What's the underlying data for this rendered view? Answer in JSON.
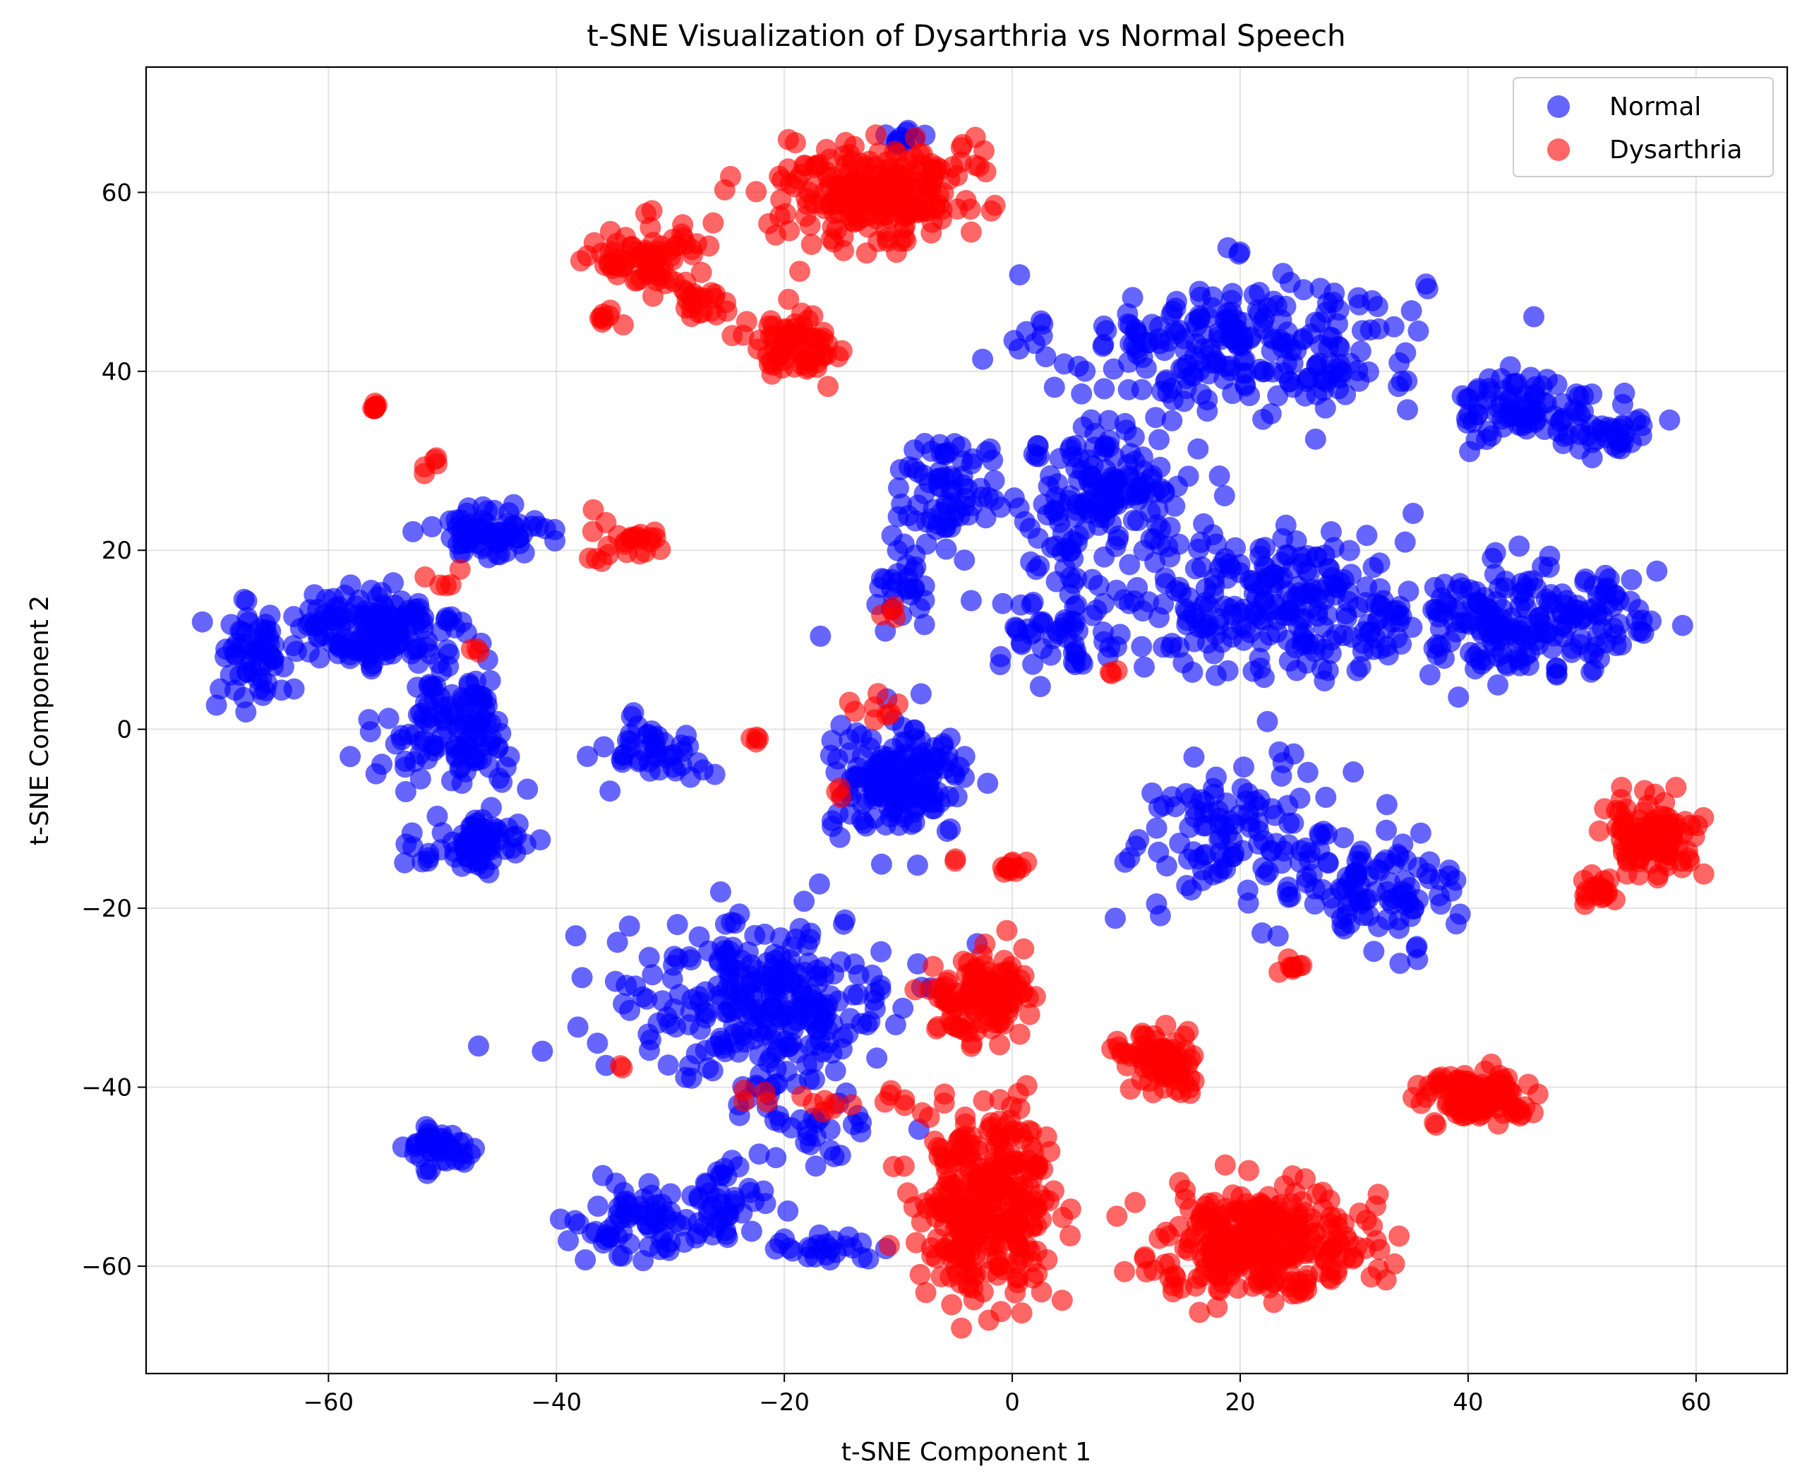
{
  "chart_data": {
    "type": "scatter",
    "title": "t-SNE Visualization of Dysarthria vs Normal Speech",
    "xlabel": "t-SNE Component 1",
    "ylabel": "t-SNE Component 2",
    "xlim": [
      -76,
      68
    ],
    "ylim": [
      -72,
      74
    ],
    "xticks": [
      -60,
      -40,
      -20,
      0,
      20,
      40,
      60
    ],
    "yticks": [
      -60,
      -40,
      -20,
      0,
      20,
      40,
      60
    ],
    "grid": true,
    "legend": {
      "placement": "top-right"
    },
    "series": [
      {
        "name": "Normal",
        "color": "#0000ff",
        "clusters": [
          {
            "cx": 20,
            "cy": 43,
            "sx": 8,
            "sy": 4,
            "n": 240
          },
          {
            "cx": 8,
            "cy": 27,
            "sx": 4,
            "sy": 4,
            "n": 150
          },
          {
            "cx": 24,
            "cy": 14,
            "sx": 8,
            "sy": 4,
            "n": 260
          },
          {
            "cx": 44,
            "cy": 36,
            "sx": 2.5,
            "sy": 2,
            "n": 70
          },
          {
            "cx": 52,
            "cy": 34,
            "sx": 2,
            "sy": 2,
            "n": 45
          },
          {
            "cx": 43,
            "cy": 12,
            "sx": 4,
            "sy": 3,
            "n": 120
          },
          {
            "cx": 51,
            "cy": 12,
            "sx": 3,
            "sy": 3,
            "n": 70
          },
          {
            "cx": 20,
            "cy": -12,
            "sx": 5,
            "sy": 4,
            "n": 120
          },
          {
            "cx": 32,
            "cy": -18,
            "sx": 3.5,
            "sy": 3,
            "n": 90
          },
          {
            "cx": 5,
            "cy": 12,
            "sx": 3,
            "sy": 3,
            "n": 60
          },
          {
            "cx": -10,
            "cy": -6,
            "sx": 3,
            "sy": 3,
            "n": 170
          },
          {
            "cx": -6,
            "cy": 27,
            "sx": 2.5,
            "sy": 3,
            "n": 70
          },
          {
            "cx": -9,
            "cy": 16,
            "sx": 2,
            "sy": 2,
            "n": 30
          },
          {
            "cx": -22,
            "cy": -31,
            "sx": 6,
            "sy": 5,
            "n": 280
          },
          {
            "cx": -56,
            "cy": 11,
            "sx": 4,
            "sy": 2.5,
            "n": 150
          },
          {
            "cx": -67,
            "cy": 8,
            "sx": 1.5,
            "sy": 3,
            "n": 60
          },
          {
            "cx": -49,
            "cy": 0,
            "sx": 3,
            "sy": 3,
            "n": 120
          },
          {
            "cx": -46,
            "cy": 22,
            "sx": 2.5,
            "sy": 1.5,
            "n": 70
          },
          {
            "cx": -47,
            "cy": -13,
            "sx": 2.5,
            "sy": 1.5,
            "n": 70
          },
          {
            "cx": -50,
            "cy": -47,
            "sx": 1.5,
            "sy": 1.2,
            "n": 45
          },
          {
            "cx": -32,
            "cy": -55,
            "sx": 3,
            "sy": 2,
            "n": 70
          },
          {
            "cx": -26,
            "cy": -53,
            "sx": 2,
            "sy": 2,
            "n": 40
          },
          {
            "cx": -17,
            "cy": -58,
            "sx": 2.5,
            "sy": 0.7,
            "n": 25
          },
          {
            "cx": -32,
            "cy": -2,
            "sx": 2.5,
            "sy": 2,
            "n": 45
          },
          {
            "cx": -9,
            "cy": 66,
            "sx": 1,
            "sy": 0.6,
            "n": 12
          },
          {
            "cx": -16,
            "cy": -44,
            "sx": 3,
            "sy": 2,
            "n": 25
          }
        ]
      },
      {
        "name": "Dysarthria",
        "color": "#ff0000",
        "clusters": [
          {
            "cx": -12,
            "cy": 60,
            "sx": 4,
            "sy": 3,
            "n": 250
          },
          {
            "cx": -32,
            "cy": 53,
            "sx": 2.5,
            "sy": 1.8,
            "n": 80
          },
          {
            "cx": -27,
            "cy": 47.5,
            "sx": 1.5,
            "sy": 0.8,
            "n": 20
          },
          {
            "cx": -36,
            "cy": 46,
            "sx": 0.5,
            "sy": 0.6,
            "n": 8
          },
          {
            "cx": -19,
            "cy": 43,
            "sx": 2,
            "sy": 2,
            "n": 70
          },
          {
            "cx": -56,
            "cy": 36,
            "sx": 0.3,
            "sy": 0.2,
            "n": 8
          },
          {
            "cx": -51,
            "cy": 29.5,
            "sx": 0.3,
            "sy": 0.5,
            "n": 5
          },
          {
            "cx": -33,
            "cy": 21,
            "sx": 1.2,
            "sy": 1,
            "n": 20
          },
          {
            "cx": -36.5,
            "cy": 20,
            "sx": 0.4,
            "sy": 2.2,
            "n": 6
          },
          {
            "cx": -50,
            "cy": 16.5,
            "sx": 0.8,
            "sy": 0.6,
            "n": 5
          },
          {
            "cx": -3,
            "cy": -30,
            "sx": 2,
            "sy": 2.5,
            "n": 120
          },
          {
            "cx": -2,
            "cy": -53,
            "sx": 3,
            "sy": 5,
            "n": 320
          },
          {
            "cx": 13,
            "cy": -37,
            "sx": 2,
            "sy": 1.5,
            "n": 80
          },
          {
            "cx": 22,
            "cy": -57,
            "sx": 4.5,
            "sy": 3,
            "n": 300
          },
          {
            "cx": 41,
            "cy": -41,
            "sx": 2.5,
            "sy": 1.2,
            "n": 120
          },
          {
            "cx": 56,
            "cy": -12,
            "sx": 2,
            "sy": 2,
            "n": 120
          },
          {
            "cx": 51.5,
            "cy": -18,
            "sx": 1,
            "sy": 0.8,
            "n": 20
          },
          {
            "cx": 0,
            "cy": -15.5,
            "sx": 1,
            "sy": 0.3,
            "n": 12
          },
          {
            "cx": 25,
            "cy": -26.5,
            "sx": 0.8,
            "sy": 0.6,
            "n": 8
          },
          {
            "cx": -12,
            "cy": 3,
            "sx": 1.5,
            "sy": 1,
            "n": 8
          },
          {
            "cx": -22.5,
            "cy": -1,
            "sx": 0.3,
            "sy": 0.3,
            "n": 4
          },
          {
            "cx": -11,
            "cy": 13,
            "sx": 0.6,
            "sy": 0.6,
            "n": 4
          },
          {
            "cx": -15,
            "cy": -7,
            "sx": 0.4,
            "sy": 0.4,
            "n": 3
          },
          {
            "cx": -17,
            "cy": -42,
            "sx": 1,
            "sy": 0.8,
            "n": 6
          },
          {
            "cx": -12,
            "cy": -42,
            "sx": 1,
            "sy": 1.5,
            "n": 6
          },
          {
            "cx": -47,
            "cy": 9,
            "sx": 0.3,
            "sy": 0.3,
            "n": 3
          },
          {
            "cx": 8.5,
            "cy": 6.5,
            "sx": 0.3,
            "sy": 0.3,
            "n": 3
          },
          {
            "cx": -5,
            "cy": -14.5,
            "sx": 0.3,
            "sy": 0.3,
            "n": 2
          },
          {
            "cx": -22,
            "cy": -41.5,
            "sx": 1,
            "sy": 0.5,
            "n": 4
          },
          {
            "cx": -34,
            "cy": -37.5,
            "sx": 0.4,
            "sy": 0.4,
            "n": 2
          }
        ]
      }
    ]
  }
}
